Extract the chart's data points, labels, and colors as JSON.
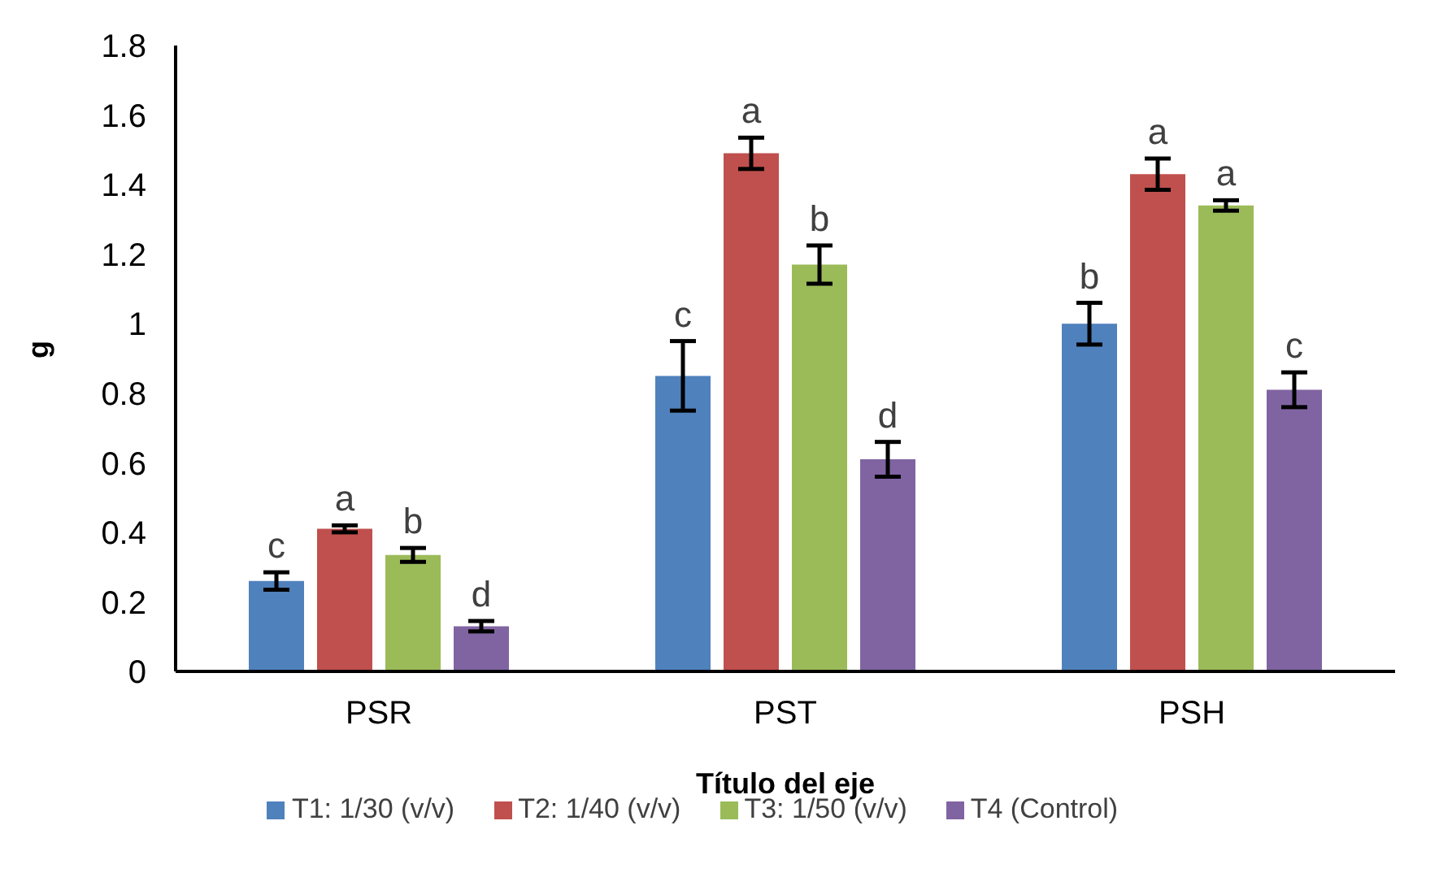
{
  "chart_data": {
    "type": "bar",
    "categories": [
      "PSR",
      "PST",
      "PSH"
    ],
    "xlabel": "Título del eje",
    "ylabel": "g",
    "ylim": [
      0,
      1.8
    ],
    "yticks": [
      0,
      0.2,
      0.4,
      0.6,
      0.8,
      1,
      1.2,
      1.4,
      1.6,
      1.8
    ],
    "grid": false,
    "legend": "bottom",
    "series": [
      {
        "name": "T1: 1/30 (v/v)",
        "color": "#4f81bd",
        "values": [
          0.26,
          0.85,
          1.0
        ],
        "errors": [
          0.025,
          0.1,
          0.06
        ],
        "value_labels": [
          "c",
          "c",
          "b"
        ]
      },
      {
        "name": "T2: 1/40 (v/v)",
        "color": "#c0504d",
        "values": [
          0.41,
          1.49,
          1.43
        ],
        "errors": [
          0.01,
          0.045,
          0.045
        ],
        "value_labels": [
          "a",
          "a",
          "a"
        ]
      },
      {
        "name": "T3: 1/50 (v/v)",
        "color": "#9bbb59",
        "values": [
          0.335,
          1.17,
          1.34
        ],
        "errors": [
          0.02,
          0.055,
          0.015
        ],
        "value_labels": [
          "b",
          "b",
          "a"
        ]
      },
      {
        "name": "T4 (Control)",
        "color": "#8064a2",
        "values": [
          0.13,
          0.61,
          0.81
        ],
        "errors": [
          0.015,
          0.05,
          0.05
        ],
        "value_labels": [
          "d",
          "d",
          "c"
        ]
      }
    ]
  }
}
